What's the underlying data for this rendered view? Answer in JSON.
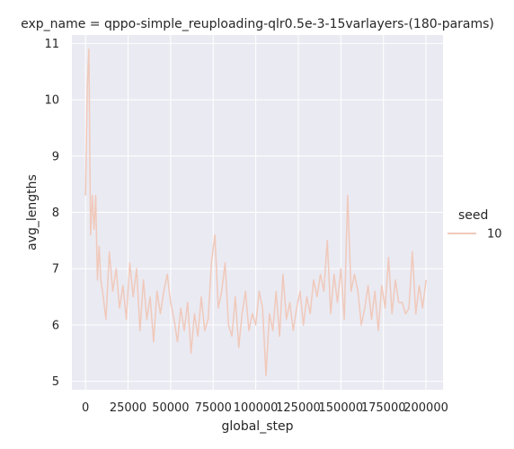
{
  "chart_data": {
    "type": "line",
    "title": "exp_name = qppo-simple_reuploading-qlr0.5e-3-15varlayers-(180-params)",
    "xlabel": "global_step",
    "ylabel": "avg_lengths",
    "xlim": [
      -8000,
      210000
    ],
    "ylim": [
      4.85,
      11.15
    ],
    "xticks": [
      0,
      25000,
      50000,
      75000,
      100000,
      125000,
      150000,
      175000,
      200000
    ],
    "xtick_labels": [
      "0",
      "25000",
      "50000",
      "75000",
      "100000",
      "125000",
      "150000",
      "175000",
      "200000"
    ],
    "yticks": [
      5,
      6,
      7,
      8,
      9,
      10,
      11
    ],
    "ytick_labels": [
      "5",
      "6",
      "7",
      "8",
      "9",
      "10",
      "11"
    ],
    "grid": true,
    "background": "#eaeaf2",
    "legend": {
      "title": "seed",
      "placement": "right"
    },
    "series": [
      {
        "name": "10",
        "color": "#f0c9bb",
        "x": [
          0,
          1000,
          2000,
          3000,
          4000,
          5000,
          6000,
          7000,
          8000,
          9000,
          10000,
          12000,
          14000,
          16000,
          18000,
          20000,
          22000,
          24000,
          26000,
          28000,
          30000,
          32000,
          34000,
          36000,
          38000,
          40000,
          42000,
          44000,
          46000,
          48000,
          50000,
          52000,
          54000,
          56000,
          58000,
          60000,
          62000,
          64000,
          66000,
          68000,
          70000,
          72000,
          74000,
          76000,
          78000,
          80000,
          82000,
          84000,
          86000,
          88000,
          90000,
          92000,
          94000,
          96000,
          98000,
          100000,
          102000,
          104000,
          106000,
          108000,
          110000,
          112000,
          114000,
          116000,
          118000,
          120000,
          122000,
          124000,
          126000,
          128000,
          130000,
          132000,
          134000,
          136000,
          138000,
          140000,
          142000,
          144000,
          146000,
          148000,
          150000,
          152000,
          154000,
          156000,
          158000,
          160000,
          162000,
          164000,
          166000,
          168000,
          170000,
          172000,
          174000,
          176000,
          178000,
          180000,
          182000,
          184000,
          186000,
          188000,
          190000,
          192000,
          194000,
          196000,
          198000,
          200000
        ],
        "values": [
          8.3,
          10.2,
          10.9,
          7.6,
          8.3,
          7.7,
          8.3,
          6.8,
          7.4,
          6.8,
          6.6,
          6.1,
          7.3,
          6.6,
          7.0,
          6.3,
          6.7,
          6.1,
          7.1,
          6.5,
          7.0,
          5.9,
          6.8,
          6.1,
          6.5,
          5.7,
          6.6,
          6.2,
          6.6,
          6.9,
          6.4,
          6.1,
          5.7,
          6.3,
          5.9,
          6.4,
          5.5,
          6.2,
          5.8,
          6.5,
          5.9,
          6.1,
          7.1,
          7.6,
          6.3,
          6.6,
          7.1,
          6.0,
          5.8,
          6.5,
          5.6,
          6.2,
          6.6,
          5.9,
          6.2,
          6.0,
          6.6,
          6.3,
          5.1,
          6.2,
          5.9,
          6.6,
          5.8,
          6.9,
          6.1,
          6.4,
          5.9,
          6.3,
          6.6,
          6.0,
          6.5,
          6.2,
          6.8,
          6.5,
          6.9,
          6.6,
          7.5,
          6.2,
          6.9,
          6.4,
          7.0,
          6.1,
          8.3,
          6.6,
          6.9,
          6.6,
          6.0,
          6.3,
          6.7,
          6.1,
          6.6,
          5.9,
          6.7,
          6.3,
          7.2,
          6.2,
          6.8,
          6.4,
          6.4,
          6.2,
          6.3,
          7.3,
          6.2,
          6.7,
          6.3,
          6.8
        ]
      }
    ]
  }
}
